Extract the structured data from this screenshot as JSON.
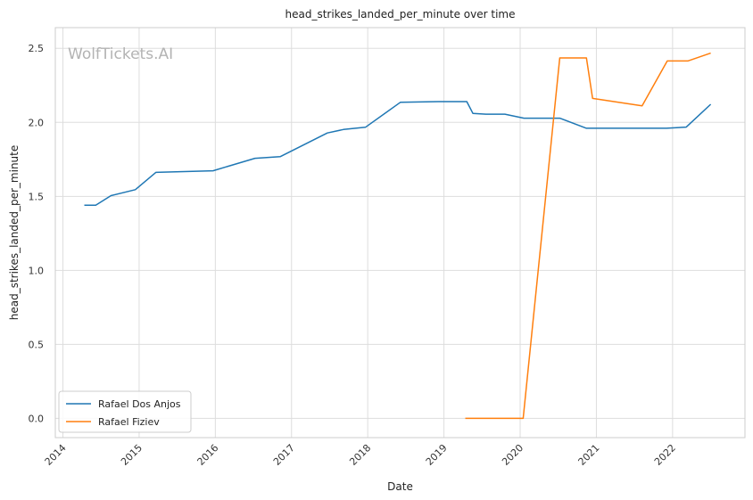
{
  "chart_data": {
    "type": "line",
    "title": "head_strikes_landed_per_minute over time",
    "xlabel": "Date",
    "ylabel": "head_strikes_landed_per_minute",
    "watermark": "WolfTickets.AI",
    "xlim": [
      2013.9,
      2022.95
    ],
    "ylim": [
      -0.13,
      2.64
    ],
    "x_ticks": [
      2014,
      2015,
      2016,
      2017,
      2018,
      2019,
      2020,
      2021,
      2022
    ],
    "x_tick_labels": [
      "2014",
      "2015",
      "2016",
      "2017",
      "2018",
      "2019",
      "2020",
      "2021",
      "2022"
    ],
    "y_ticks": [
      0.0,
      0.5,
      1.0,
      1.5,
      2.0,
      2.5
    ],
    "y_tick_labels": [
      "0.0",
      "0.5",
      "1.0",
      "1.5",
      "2.0",
      "2.5"
    ],
    "grid": true,
    "legend_position": "lower-left",
    "series": [
      {
        "name": "Rafael Dos Anjos",
        "color": "#1f77b4",
        "x": [
          2014.28,
          2014.43,
          2014.63,
          2014.95,
          2015.22,
          2015.97,
          2016.52,
          2016.85,
          2017.47,
          2017.68,
          2017.97,
          2018.43,
          2018.93,
          2019.3,
          2019.38,
          2019.55,
          2019.8,
          2020.05,
          2020.52,
          2020.87,
          2021.2,
          2021.5,
          2021.92,
          2022.18,
          2022.5
        ],
        "y": [
          1.44,
          1.44,
          1.505,
          1.545,
          1.662,
          1.673,
          1.757,
          1.768,
          1.928,
          1.952,
          1.967,
          2.136,
          2.14,
          2.14,
          2.06,
          2.055,
          2.055,
          2.028,
          2.028,
          1.96,
          1.96,
          1.96,
          1.96,
          1.968,
          2.122
        ]
      },
      {
        "name": "Rafael Fiziev",
        "color": "#ff7f0e",
        "x": [
          2019.28,
          2020.04,
          2020.52,
          2020.87,
          2020.95,
          2021.6,
          2021.93,
          2022.2,
          2022.5
        ],
        "y": [
          0.0,
          0.0,
          2.435,
          2.435,
          2.162,
          2.112,
          2.415,
          2.415,
          2.468
        ]
      }
    ]
  }
}
